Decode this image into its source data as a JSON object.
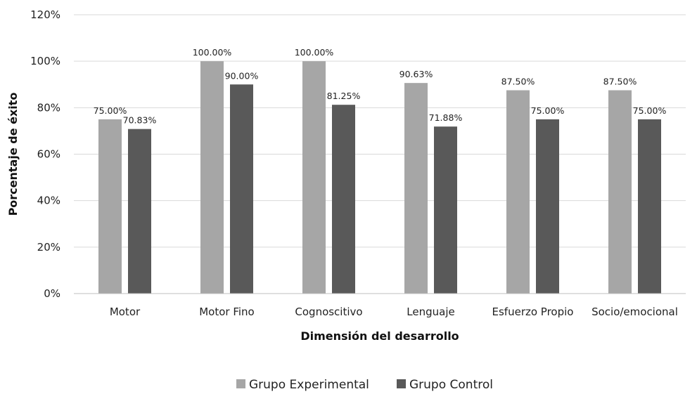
{
  "chart_data": {
    "type": "bar",
    "title": "",
    "xlabel": "Dimensión del desarrollo",
    "ylabel": "Porcentaje de éxito",
    "categories": [
      "Motor",
      "Motor Fino",
      "Cognoscitivo",
      "Lenguaje",
      "Esfuerzo Propio",
      "Socio/emocional"
    ],
    "series": [
      {
        "name": "Grupo Experimental",
        "color": "#a6a6a6",
        "values": [
          75.0,
          100.0,
          100.0,
          90.63,
          87.5,
          87.5
        ],
        "labels": [
          "75.00%",
          "100.00%",
          "100.00%",
          "90.63%",
          "87.50%",
          "87.50%"
        ]
      },
      {
        "name": "Grupo Control",
        "color": "#595959",
        "values": [
          70.83,
          90.0,
          81.25,
          71.88,
          75.0,
          75.0
        ],
        "labels": [
          "70.83%",
          "90.00%",
          "81.25%",
          "71.88%",
          "75.00%",
          "75.00%"
        ]
      }
    ],
    "ylim": [
      0,
      120
    ],
    "yticks": [
      0,
      20,
      40,
      60,
      80,
      100,
      120
    ],
    "ytick_labels": [
      "0%",
      "20%",
      "40%",
      "60%",
      "80%",
      "100%",
      "120%"
    ],
    "grid": true,
    "legend_position": "bottom"
  }
}
